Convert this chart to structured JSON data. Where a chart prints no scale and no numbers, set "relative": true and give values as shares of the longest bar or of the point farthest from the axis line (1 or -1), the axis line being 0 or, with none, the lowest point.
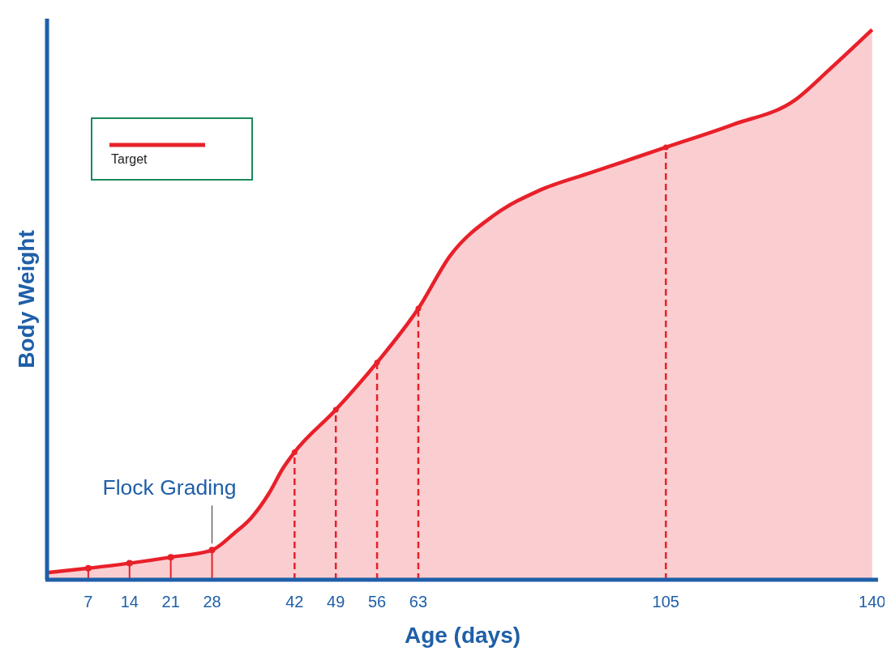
{
  "chart_data": {
    "type": "area",
    "relative": true,
    "xlabel": "Age (days)",
    "ylabel": "Body Weight",
    "xlim": [
      0,
      141
    ],
    "xticks": [
      7,
      14,
      21,
      28,
      42,
      49,
      56,
      63,
      105,
      140
    ],
    "series": [
      {
        "name": "Target",
        "color": "#e8202a",
        "x": [
          0,
          7,
          14,
          21,
          28,
          31.7,
          34.6,
          37.6,
          40,
          42,
          49,
          56,
          63,
          68.4,
          75.9,
          83.4,
          92.3,
          105,
          116.3,
          126.9,
          132.9,
          140
        ],
        "values": [
          0.013,
          0.021,
          0.03,
          0.041,
          0.054,
          0.084,
          0.112,
          0.156,
          0.202,
          0.232,
          0.309,
          0.395,
          0.493,
          0.589,
          0.663,
          0.707,
          0.74,
          0.786,
          0.827,
          0.872,
          0.929,
          1.0
        ]
      },
      {
        "type": "lollipop",
        "color": "#e8202a",
        "marker": "circle",
        "line_style": "solid",
        "x": [
          7,
          14,
          21,
          28
        ],
        "values": [
          0.021,
          0.03,
          0.041,
          0.054
        ]
      },
      {
        "type": "lollipop",
        "color": "#e8202a",
        "marker": "circle",
        "line_style": "dashed",
        "x": [
          42,
          49,
          56,
          63,
          105
        ],
        "values": [
          0.232,
          0.309,
          0.395,
          0.493,
          0.786
        ]
      }
    ],
    "annotations": [
      {
        "text": "Flock Grading",
        "x": 28,
        "y": 0.054
      }
    ],
    "legend": "top left",
    "line_style": "solid",
    "grid": false
  }
}
